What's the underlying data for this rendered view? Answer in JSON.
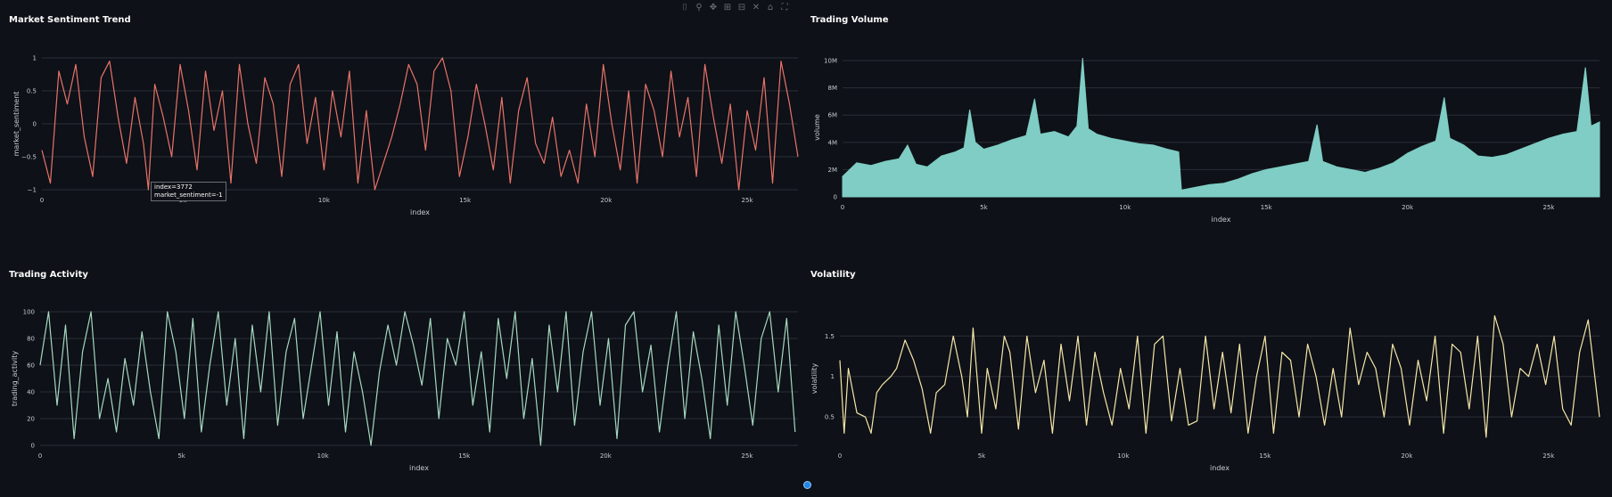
{
  "modebar": {
    "icons": [
      "camera-icon",
      "zoom-icon",
      "pan-icon",
      "zoom-in-icon",
      "zoom-out-icon",
      "autoscale-icon",
      "home-icon",
      "fullscreen-icon"
    ],
    "glyphs": [
      "⌷",
      "⚲",
      "✥",
      "⊞",
      "⊟",
      "✕",
      "⌂",
      "⛶"
    ]
  },
  "tooltip": {
    "line1": "index=3772",
    "line2": "market_sentiment=-1"
  },
  "chart_data": [
    {
      "id": "sentiment",
      "type": "line",
      "title": "Market Sentiment Trend",
      "xlabel": "index",
      "ylabel": "market_sentiment",
      "xlim": [
        0,
        26800
      ],
      "ylim": [
        -1,
        1
      ],
      "x_ticks": [
        0,
        5000,
        10000,
        15000,
        20000,
        25000
      ],
      "x_tick_labels": [
        "0",
        "5k",
        "10k",
        "15k",
        "20k",
        "25k"
      ],
      "y_ticks": [
        -1,
        -0.5,
        0,
        0.5,
        1
      ],
      "y_tick_labels": [
        "−1",
        "−0.5",
        "0",
        "0.5",
        "1"
      ],
      "color": "#e8736a",
      "fill": false,
      "x": [
        0,
        300,
        600,
        900,
        1200,
        1500,
        1800,
        2100,
        2400,
        2700,
        3000,
        3300,
        3600,
        3772,
        4000,
        4300,
        4600,
        4900,
        5200,
        5500,
        5800,
        6100,
        6400,
        6700,
        7000,
        7300,
        7600,
        7900,
        8200,
        8500,
        8800,
        9100,
        9400,
        9700,
        10000,
        10300,
        10600,
        10900,
        11200,
        11500,
        11800,
        12100,
        12400,
        12700,
        13000,
        13300,
        13600,
        13900,
        14200,
        14500,
        14800,
        15100,
        15400,
        15700,
        16000,
        16300,
        16600,
        16900,
        17200,
        17500,
        17800,
        18100,
        18400,
        18700,
        19000,
        19300,
        19600,
        19900,
        20200,
        20500,
        20800,
        21100,
        21400,
        21700,
        22000,
        22300,
        22600,
        22900,
        23200,
        23500,
        23800,
        24100,
        24400,
        24700,
        25000,
        25300,
        25600,
        25900,
        26200,
        26500,
        26800
      ],
      "y": [
        -0.4,
        -0.9,
        0.8,
        0.3,
        0.9,
        -0.2,
        -0.8,
        0.7,
        0.95,
        0.1,
        -0.6,
        0.4,
        -0.3,
        -1,
        0.6,
        0.1,
        -0.5,
        0.9,
        0.2,
        -0.7,
        0.8,
        -0.1,
        0.5,
        -0.9,
        0.9,
        0.0,
        -0.6,
        0.7,
        0.3,
        -0.8,
        0.6,
        0.9,
        -0.3,
        0.4,
        -0.7,
        0.5,
        -0.2,
        0.8,
        -0.9,
        0.2,
        -1,
        -0.6,
        -0.2,
        0.3,
        0.9,
        0.6,
        -0.4,
        0.8,
        1,
        0.5,
        -0.8,
        -0.2,
        0.6,
        0.0,
        -0.7,
        0.4,
        -0.9,
        0.2,
        0.7,
        -0.3,
        -0.6,
        0.1,
        -0.8,
        -0.4,
        -0.9,
        0.3,
        -0.5,
        0.9,
        0.0,
        -0.7,
        0.5,
        -0.9,
        0.6,
        0.2,
        -0.5,
        0.8,
        -0.2,
        0.4,
        -0.8,
        0.9,
        0.1,
        -0.6,
        0.3,
        -1,
        0.2,
        -0.4,
        0.7,
        -0.9,
        0.95,
        0.3,
        -0.5
      ]
    },
    {
      "id": "volume",
      "type": "area",
      "title": "Trading Volume",
      "xlabel": "index",
      "ylabel": "volume",
      "xlim": [
        0,
        26800
      ],
      "ylim": [
        0,
        10200000
      ],
      "x_ticks": [
        0,
        5000,
        10000,
        15000,
        20000,
        25000
      ],
      "x_tick_labels": [
        "0",
        "5k",
        "10k",
        "15k",
        "20k",
        "25k"
      ],
      "y_ticks": [
        0,
        2000000,
        4000000,
        6000000,
        8000000,
        10000000
      ],
      "y_tick_labels": [
        "0",
        "2M",
        "4M",
        "6M",
        "8M",
        "10M"
      ],
      "color": "#7fcdc4",
      "fill": true,
      "x": [
        0,
        500,
        1000,
        1500,
        2000,
        2300,
        2600,
        3000,
        3500,
        4000,
        4300,
        4500,
        4700,
        5000,
        5500,
        6000,
        6500,
        6800,
        7000,
        7500,
        8000,
        8300,
        8500,
        8700,
        9000,
        9500,
        10000,
        10500,
        11000,
        11500,
        11900,
        12000,
        12500,
        13000,
        13500,
        14000,
        14500,
        15000,
        15500,
        16000,
        16500,
        16800,
        17000,
        17500,
        18000,
        18500,
        19000,
        19500,
        20000,
        20500,
        21000,
        21300,
        21500,
        22000,
        22500,
        23000,
        23500,
        24000,
        24500,
        25000,
        25500,
        26000,
        26300,
        26500,
        26800
      ],
      "y": [
        1500000,
        2500000,
        2300000,
        2600000,
        2800000,
        3800000,
        2400000,
        2200000,
        3000000,
        3300000,
        3600000,
        6400000,
        4000000,
        3500000,
        3800000,
        4200000,
        4500000,
        7200000,
        4600000,
        4800000,
        4400000,
        5200000,
        10200000,
        5000000,
        4600000,
        4300000,
        4100000,
        3900000,
        3800000,
        3500000,
        3300000,
        500000,
        700000,
        900000,
        1000000,
        1300000,
        1700000,
        2000000,
        2200000,
        2400000,
        2600000,
        5300000,
        2600000,
        2200000,
        2000000,
        1800000,
        2100000,
        2500000,
        3200000,
        3700000,
        4100000,
        7300000,
        4300000,
        3800000,
        3000000,
        2900000,
        3100000,
        3500000,
        3900000,
        4300000,
        4600000,
        4800000,
        9500000,
        5200000,
        5500000
      ]
    },
    {
      "id": "activity",
      "type": "line",
      "title": "Trading Activity",
      "xlabel": "index",
      "ylabel": "trading_activity",
      "xlim": [
        0,
        26800
      ],
      "ylim": [
        0,
        100
      ],
      "x_ticks": [
        0,
        5000,
        10000,
        15000,
        20000,
        25000
      ],
      "x_tick_labels": [
        "0",
        "5k",
        "10k",
        "15k",
        "20k",
        "25k"
      ],
      "y_ticks": [
        0,
        20,
        40,
        60,
        80,
        100
      ],
      "y_tick_labels": [
        "0",
        "20",
        "40",
        "60",
        "80",
        "100"
      ],
      "color": "#a5d8c0",
      "fill": false,
      "x": [
        0,
        300,
        600,
        900,
        1200,
        1500,
        1800,
        2100,
        2400,
        2700,
        3000,
        3300,
        3600,
        3900,
        4200,
        4500,
        4800,
        5100,
        5400,
        5700,
        6000,
        6300,
        6600,
        6900,
        7200,
        7500,
        7800,
        8100,
        8400,
        8700,
        9000,
        9300,
        9600,
        9900,
        10200,
        10500,
        10800,
        11100,
        11400,
        11700,
        12000,
        12300,
        12600,
        12900,
        13200,
        13500,
        13800,
        14100,
        14400,
        14700,
        15000,
        15300,
        15600,
        15900,
        16200,
        16500,
        16800,
        17100,
        17400,
        17700,
        18000,
        18300,
        18600,
        18900,
        19200,
        19500,
        19800,
        20100,
        20400,
        20700,
        21000,
        21300,
        21600,
        21900,
        22200,
        22500,
        22800,
        23100,
        23400,
        23700,
        24000,
        24300,
        24600,
        24900,
        25200,
        25500,
        25800,
        26100,
        26400,
        26700
      ],
      "y": [
        60,
        100,
        30,
        90,
        5,
        70,
        100,
        20,
        50,
        10,
        65,
        30,
        85,
        40,
        5,
        100,
        70,
        20,
        95,
        10,
        60,
        100,
        30,
        80,
        5,
        90,
        40,
        100,
        15,
        70,
        95,
        20,
        60,
        100,
        30,
        85,
        10,
        70,
        40,
        0,
        55,
        90,
        60,
        100,
        75,
        45,
        95,
        20,
        80,
        60,
        100,
        30,
        70,
        10,
        95,
        50,
        100,
        20,
        65,
        0,
        90,
        40,
        100,
        15,
        70,
        100,
        30,
        80,
        5,
        90,
        100,
        40,
        75,
        10,
        60,
        100,
        20,
        85,
        50,
        5,
        90,
        30,
        100,
        60,
        15,
        80,
        100,
        40,
        95,
        10
      ]
    },
    {
      "id": "volatility",
      "type": "line",
      "title": "Volatility",
      "xlabel": "index",
      "ylabel": "volatility",
      "xlim": [
        0,
        26800
      ],
      "ylim": [
        0.15,
        1.8
      ],
      "x_ticks": [
        0,
        5000,
        10000,
        15000,
        20000,
        25000
      ],
      "x_tick_labels": [
        "0",
        "5k",
        "10k",
        "15k",
        "20k",
        "25k"
      ],
      "y_ticks": [
        0.5,
        1,
        1.5
      ],
      "y_tick_labels": [
        "0.5",
        "1",
        "1.5"
      ],
      "color": "#f5e6a8",
      "fill": false,
      "x": [
        0,
        150,
        300,
        600,
        900,
        1100,
        1300,
        1500,
        1800,
        2000,
        2300,
        2600,
        2900,
        3200,
        3400,
        3700,
        4000,
        4300,
        4500,
        4700,
        5000,
        5200,
        5500,
        5800,
        6000,
        6300,
        6600,
        6900,
        7200,
        7500,
        7800,
        8100,
        8400,
        8700,
        9000,
        9300,
        9600,
        9900,
        10200,
        10500,
        10800,
        11100,
        11400,
        11700,
        12000,
        12300,
        12600,
        12900,
        13200,
        13500,
        13800,
        14100,
        14400,
        14700,
        15000,
        15300,
        15600,
        15900,
        16200,
        16500,
        16800,
        17100,
        17400,
        17700,
        18000,
        18300,
        18600,
        18900,
        19200,
        19500,
        19800,
        20100,
        20400,
        20700,
        21000,
        21300,
        21600,
        21900,
        22200,
        22500,
        22800,
        23100,
        23400,
        23700,
        24000,
        24300,
        24600,
        24900,
        25200,
        25500,
        25800,
        26100,
        26400,
        26800
      ],
      "y": [
        1.2,
        0.3,
        1.1,
        0.55,
        0.5,
        0.3,
        0.8,
        0.9,
        1.0,
        1.1,
        1.45,
        1.2,
        0.85,
        0.3,
        0.8,
        0.9,
        1.5,
        1.0,
        0.5,
        1.6,
        0.3,
        1.1,
        0.6,
        1.5,
        1.3,
        0.35,
        1.5,
        0.8,
        1.2,
        0.3,
        1.4,
        0.7,
        1.5,
        0.4,
        1.3,
        0.8,
        0.4,
        1.1,
        0.6,
        1.5,
        0.3,
        1.4,
        1.5,
        0.45,
        1.1,
        0.4,
        0.45,
        1.5,
        0.6,
        1.3,
        0.55,
        1.4,
        0.3,
        1.0,
        1.5,
        0.3,
        1.3,
        1.2,
        0.5,
        1.4,
        1.0,
        0.4,
        1.1,
        0.5,
        1.6,
        0.9,
        1.3,
        1.1,
        0.5,
        1.4,
        1.1,
        0.4,
        1.2,
        0.7,
        1.5,
        0.3,
        1.4,
        1.3,
        0.6,
        1.5,
        0.25,
        1.75,
        1.4,
        0.5,
        1.1,
        1.0,
        1.4,
        0.9,
        1.5,
        0.6,
        0.4,
        1.3,
        1.7,
        0.5
      ]
    }
  ]
}
